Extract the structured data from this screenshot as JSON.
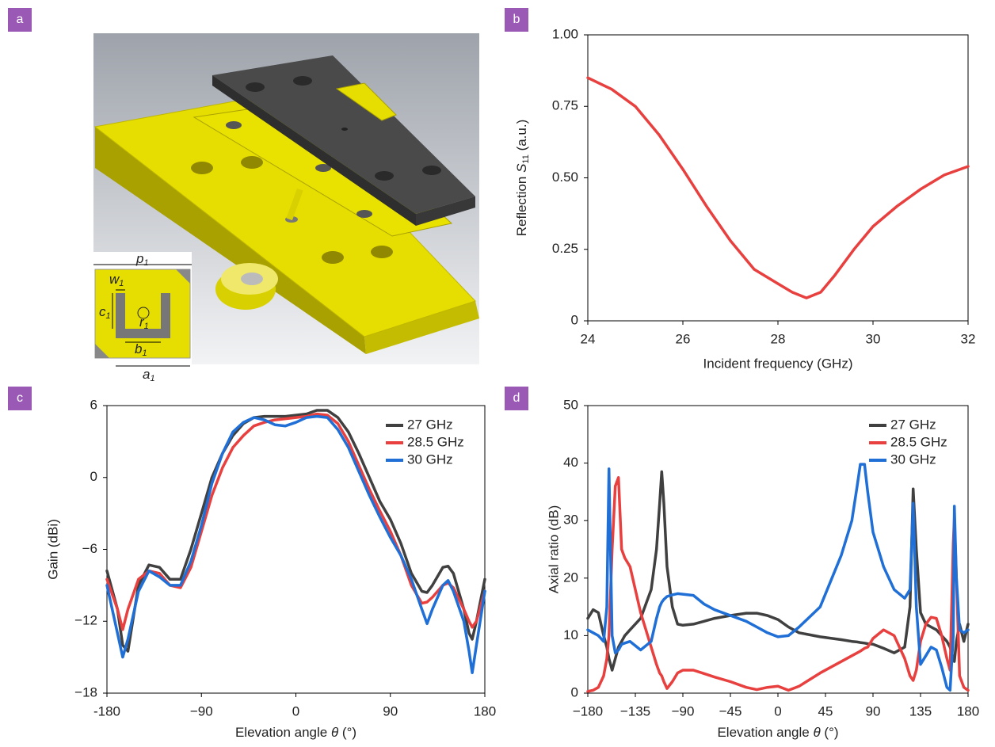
{
  "panels": [
    "a",
    "b",
    "c",
    "d"
  ],
  "figure_a": {
    "labels": [
      {
        "symbol": "p",
        "subscript": "1"
      },
      {
        "symbol": "w",
        "subscript": "1"
      },
      {
        "symbol": "c",
        "subscript": "1"
      },
      {
        "symbol": "r",
        "subscript": "1"
      },
      {
        "symbol": "b",
        "subscript": "1"
      },
      {
        "symbol": "a",
        "subscript": "1"
      }
    ]
  },
  "chart_data": [
    {
      "type": "line",
      "color": "#e8403f",
      "xlabel": "Incident frequency (GHz)",
      "ylabel": {
        "text": "Reflection ",
        "symbol": "S",
        "subscript": "11",
        "unit": " (a.u.)"
      },
      "x": [
        24,
        24.5,
        25,
        25.5,
        26,
        26.5,
        27,
        27.5,
        28,
        28.3,
        28.6,
        28.9,
        29.2,
        29.6,
        30,
        30.5,
        31,
        31.5,
        32
      ],
      "values": [
        0.85,
        0.81,
        0.75,
        0.65,
        0.53,
        0.4,
        0.28,
        0.18,
        0.13,
        0.1,
        0.08,
        0.1,
        0.16,
        0.25,
        0.33,
        0.4,
        0.46,
        0.51,
        0.54
      ],
      "xlim": [
        24,
        32
      ],
      "xticks": [
        24,
        26,
        28,
        30,
        32
      ],
      "ylim": [
        0,
        1
      ],
      "yticks": [
        0,
        {
          "value": 0.25,
          "label": "0.25"
        },
        {
          "value": 0.5,
          "label": "0.50"
        },
        {
          "value": 0.75,
          "label": "0.75"
        },
        {
          "value": 1,
          "label": "1.00"
        }
      ]
    },
    {
      "type": "line",
      "xlabel": {
        "text": "Elevation angle ",
        "symbol": "θ",
        "unit": " (°)"
      },
      "ylabel": "Gain (dBi)",
      "legend": "upper right",
      "x": [
        -180,
        -170,
        -165,
        -160,
        -150,
        -140,
        -130,
        -120,
        -110,
        -100,
        -90,
        -80,
        -70,
        -60,
        -50,
        -40,
        -30,
        -20,
        -10,
        0,
        10,
        20,
        30,
        40,
        50,
        60,
        70,
        80,
        90,
        100,
        110,
        120,
        125,
        130,
        140,
        145,
        150,
        160,
        165,
        168,
        172,
        180
      ],
      "series": [
        {
          "name": "27 GHz",
          "color": "#404040",
          "values": [
            -7.8,
            -11,
            -14,
            -14.5,
            -9,
            -7.3,
            -7.5,
            -8.5,
            -8.5,
            -6,
            -3,
            0,
            2,
            3.5,
            4.5,
            5,
            5.1,
            5.1,
            5.1,
            5.2,
            5.3,
            5.6,
            5.6,
            5,
            3.8,
            2,
            0,
            -2,
            -3.5,
            -5.5,
            -8,
            -9.5,
            -9.6,
            -9,
            -7.5,
            -7.4,
            -8,
            -11,
            -13,
            -13.5,
            -12,
            -8.5
          ]
        },
        {
          "name": "28.5 GHz",
          "color": "#e8403f",
          "values": [
            -8.5,
            -11,
            -12.7,
            -11,
            -8.5,
            -7.8,
            -8,
            -9,
            -9.2,
            -7.5,
            -4.5,
            -1.5,
            0.8,
            2.5,
            3.5,
            4.3,
            4.6,
            4.8,
            4.9,
            5,
            5.1,
            5.3,
            5.2,
            4.5,
            3,
            1,
            -1,
            -2.8,
            -4.5,
            -6.5,
            -9,
            -10.5,
            -10.4,
            -10,
            -9,
            -8.8,
            -9.2,
            -11,
            -12,
            -12.5,
            -12,
            -9.5
          ]
        },
        {
          "name": "30 GHz",
          "color": "#1f6fd6",
          "values": [
            -9,
            -13,
            -15,
            -13.5,
            -9.5,
            -7.8,
            -8.3,
            -9,
            -9,
            -7,
            -4,
            -0.5,
            2,
            3.8,
            4.6,
            5,
            4.8,
            4.4,
            4.3,
            4.6,
            5,
            5.1,
            5,
            4,
            2.5,
            0.5,
            -1.5,
            -3.3,
            -5,
            -6.5,
            -8.5,
            -11,
            -12.2,
            -11,
            -9,
            -8.6,
            -9.5,
            -12,
            -14.5,
            -16.3,
            -14,
            -9.5
          ]
        }
      ],
      "xlim": [
        -180,
        180
      ],
      "xticks": [
        -180,
        {
          "value": -90,
          "label": "−90"
        },
        0,
        90,
        180
      ],
      "ylim": [
        -18,
        6
      ],
      "yticks": [
        {
          "value": -18,
          "label": "−18"
        },
        {
          "value": -12,
          "label": "−12"
        },
        {
          "value": -6,
          "label": "−6"
        },
        0,
        6
      ]
    },
    {
      "type": "line",
      "xlabel": {
        "text": "Elevation angle ",
        "symbol": "θ",
        "unit": " (°)"
      },
      "ylabel": "Axial ratio (dB)",
      "legend": "upper right",
      "x": [
        -180,
        -175,
        -170,
        -165,
        -162,
        -160,
        -157,
        -154,
        -151,
        -148,
        -145,
        -140,
        -130,
        -120,
        -115,
        -112,
        -110,
        -108,
        -105,
        -100,
        -95,
        -90,
        -80,
        -70,
        -60,
        -45,
        -30,
        -20,
        -10,
        0,
        10,
        20,
        40,
        60,
        70,
        75,
        78,
        82,
        85,
        90,
        100,
        110,
        120,
        125,
        128,
        131,
        135,
        140,
        145,
        150,
        155,
        160,
        163,
        166,
        167,
        169,
        172,
        176,
        180
      ],
      "series": [
        {
          "name": "27 GHz",
          "color": "#404040",
          "values": [
            13,
            14.5,
            14,
            10,
            8,
            6,
            4,
            6,
            8,
            9,
            10,
            11,
            13,
            18,
            25,
            33,
            38.5,
            33,
            22,
            15,
            12,
            11.8,
            12,
            12.5,
            13,
            13.5,
            13.9,
            13.9,
            13.5,
            12.8,
            11.5,
            10.5,
            9.8,
            9.3,
            9,
            8.9,
            8.8,
            8.7,
            8.6,
            8.5,
            7.8,
            7,
            8,
            15,
            35.5,
            25,
            14,
            12,
            11.5,
            11,
            10,
            9,
            8,
            6,
            5.5,
            9,
            12,
            9,
            12
          ]
        },
        {
          "name": "28.5 GHz",
          "color": "#e8403f",
          "values": [
            0.3,
            0.5,
            1,
            3,
            6,
            10,
            25,
            36,
            37.5,
            25,
            23.5,
            22,
            14,
            8,
            5,
            3.5,
            3,
            2,
            0.8,
            2,
            3.5,
            4,
            4,
            3.4,
            2.8,
            2,
            1,
            0.6,
            1,
            1.2,
            0.5,
            1.2,
            3.5,
            5.5,
            6.5,
            7,
            7.3,
            7.8,
            8,
            9.5,
            11,
            10,
            6,
            3,
            2.2,
            4,
            9,
            12,
            13.2,
            13,
            10,
            6,
            4,
            26,
            30.5,
            20,
            3,
            1,
            0.5
          ]
        },
        {
          "name": "30 GHz",
          "color": "#1f6fd6",
          "values": [
            11,
            10.5,
            10,
            9,
            15,
            39,
            10,
            7,
            7.5,
            8.5,
            8.7,
            9,
            7.5,
            9,
            13,
            15,
            15.8,
            16.3,
            16.8,
            17.1,
            17.3,
            17.2,
            17,
            15.5,
            14.5,
            13.5,
            12.5,
            11.5,
            10.5,
            9.8,
            10,
            11.5,
            15,
            24,
            30,
            36,
            39.8,
            39.8,
            35,
            28,
            22,
            18,
            16.5,
            18,
            33,
            15,
            5,
            6.5,
            8,
            7.5,
            4.5,
            1,
            0.5,
            10,
            32.5,
            20,
            11,
            10.5,
            11
          ]
        }
      ],
      "xlim": [
        -180,
        180
      ],
      "xticks": [
        {
          "value": -180,
          "label": "−180"
        },
        {
          "value": -135,
          "label": "−135"
        },
        {
          "value": -90,
          "label": "−90"
        },
        {
          "value": -45,
          "label": "−45"
        },
        0,
        45,
        90,
        135,
        180
      ],
      "ylim": [
        0,
        50
      ],
      "yticks": [
        0,
        10,
        20,
        30,
        40,
        50
      ]
    }
  ]
}
